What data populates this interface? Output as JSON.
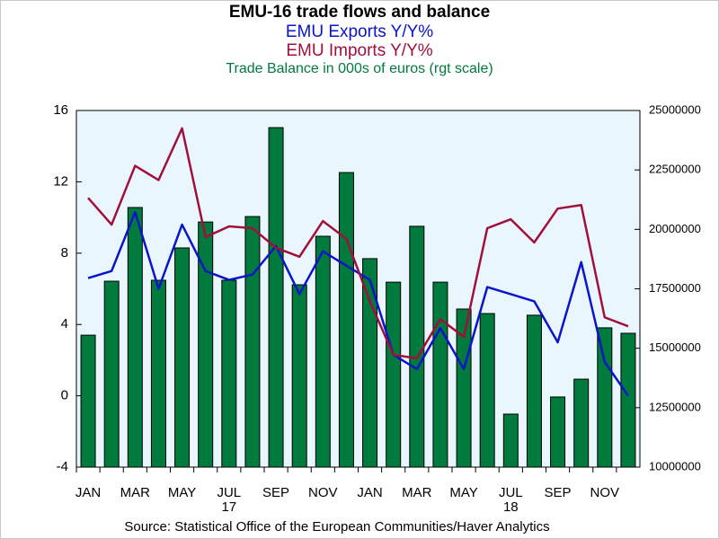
{
  "chart_data": {
    "type": "combo",
    "title": "EMU-16 trade flows and balance",
    "source": "Source:  Statistical Office of the European Communities/Haver Analytics",
    "categories": [
      "JAN",
      null,
      "MAR",
      null,
      "MAY",
      null,
      "JUL",
      null,
      "SEP",
      null,
      "NOV",
      null,
      "JAN",
      null,
      "MAR",
      null,
      "MAY",
      null,
      "JUL",
      null,
      "SEP",
      null,
      "NOV",
      null
    ],
    "years": [
      "17",
      "18"
    ],
    "ylim": [
      -4,
      16
    ],
    "yticks": [
      -4,
      0,
      4,
      8,
      12,
      16
    ],
    "y2lim": [
      10000000,
      25000000
    ],
    "y2ticks": [
      10000000,
      12500000,
      15000000,
      17500000,
      20000000,
      22500000,
      25000000
    ],
    "series": [
      {
        "name": "Trade Balance in 000s of euros (rgt scale)",
        "type": "bar",
        "axis": "y2",
        "color": "#007a3d",
        "values": [
          15550000,
          17820000,
          20920000,
          17860000,
          19220000,
          20310000,
          17860000,
          20540000,
          24280000,
          17670000,
          19710000,
          22390000,
          18770000,
          17780000,
          20130000,
          17780000,
          16650000,
          16460000,
          12230000,
          16390000,
          12950000,
          13700000,
          15860000,
          15630000
        ]
      },
      {
        "name": "EMU Exports Y/Y%",
        "type": "line",
        "color": "#0a14c8",
        "values": [
          6.6,
          7.0,
          10.3,
          6.0,
          9.6,
          7.0,
          6.5,
          6.8,
          8.4,
          5.7,
          8.1,
          7.3,
          6.5,
          2.3,
          1.5,
          3.8,
          1.5,
          6.1,
          5.7,
          5.3,
          3.0,
          7.5,
          1.9,
          0.0
        ]
      },
      {
        "name": "EMU Imports Y/Y%",
        "type": "line",
        "color": "#a0103a",
        "values": [
          11.1,
          9.6,
          12.9,
          12.1,
          15.0,
          8.9,
          9.5,
          9.4,
          8.3,
          7.8,
          9.8,
          8.8,
          5.3,
          2.3,
          2.1,
          4.3,
          3.3,
          9.4,
          9.9,
          8.6,
          10.5,
          10.7,
          4.4,
          3.9
        ]
      }
    ]
  }
}
